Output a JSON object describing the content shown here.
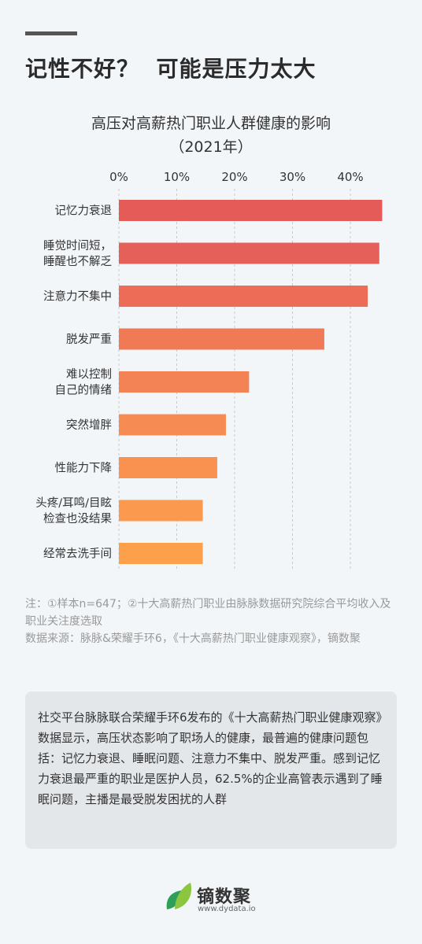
{
  "headline": "记性不好？  可能是压力太大",
  "chart_data": {
    "type": "bar",
    "orientation": "horizontal",
    "title": "高压对高薪热门职业人群健康的影响",
    "subtitle": "（2021年）",
    "xlim": [
      0,
      45
    ],
    "ticks": [
      "0%",
      "10%",
      "20%",
      "30%",
      "40%"
    ],
    "tick_values": [
      0,
      10,
      20,
      30,
      40
    ],
    "categories": [
      [
        "记忆力衰退"
      ],
      [
        "睡觉时间短，",
        "睡醒也不解乏"
      ],
      [
        "注意力不集中"
      ],
      [
        "脱发严重"
      ],
      [
        "难以控制",
        "自己的情绪"
      ],
      [
        "突然增胖"
      ],
      [
        "性能力下降"
      ],
      [
        "头疼/耳鸣/目眩",
        "检查也没结果"
      ],
      [
        "经常去洗手间"
      ]
    ],
    "values": [
      45.5,
      45.0,
      43.0,
      35.5,
      22.5,
      18.5,
      17.0,
      14.5,
      14.5
    ],
    "colors": [
      "#e45b57",
      "#e6605a",
      "#ec6c58",
      "#f07a56",
      "#f38355",
      "#f68c53",
      "#f99250",
      "#fb9a4e",
      "#fca04b"
    ],
    "grid": true
  },
  "notes": {
    "line1": "注：①样本n=647；②十大高薪热门职业由脉脉数据研究院综合平均收入及职业关注度选取",
    "line2": "数据来源：脉脉&荣耀手环6，《十大高薪热门职业健康观察》，镝数聚"
  },
  "summary": "社交平台脉脉联合荣耀手环6发布的《十大高薪热门职业健康观察》数据显示，高压状态影响了职场人的健康，最普遍的健康问题包括：记忆力衰退、睡眠问题、注意力不集中、脱发严重。感到记忆力衰退最严重的职业是医护人员，62.5%的企业高管表示遇到了睡眠问题，主播是最受脱发困扰的人群",
  "logo": {
    "name": "镝数聚",
    "url": "www.dydata.io",
    "icon": "leaf-logo-icon",
    "colors": [
      "#2e9e5b",
      "#8cc63f"
    ]
  }
}
